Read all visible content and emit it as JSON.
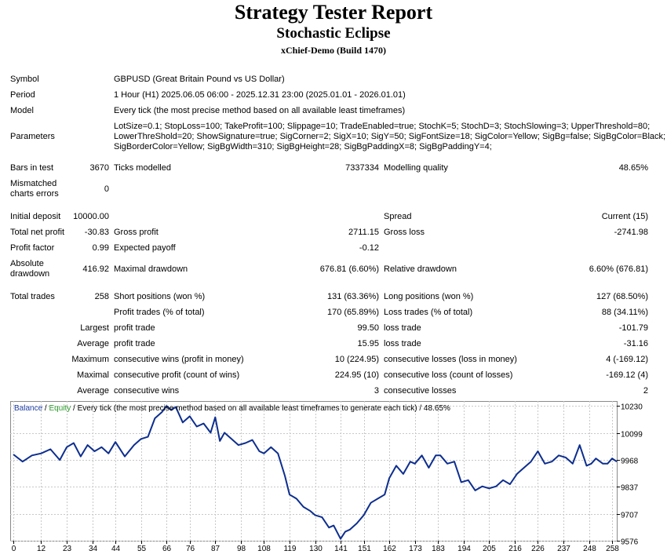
{
  "header": {
    "title": "Strategy Tester Report",
    "subtitle": "Stochastic Eclipse",
    "build": "xChief-Demo (Build 1470)"
  },
  "info": {
    "symbol_label": "Symbol",
    "symbol_value": "GBPUSD (Great Britain Pound vs US Dollar)",
    "period_label": "Period",
    "period_value": "1 Hour (H1) 2025.06.05 06:00 - 2025.12.31 23:00 (2025.01.01 - 2026.01.01)",
    "model_label": "Model",
    "model_value": "Every tick (the most precise method based on all available least timeframes)",
    "parameters_label": "Parameters",
    "parameters_lines": [
      "LotSize=0.1; StopLoss=100; TakeProfit=100; Slippage=10; TradeEnabled=true; StochK=5; StochD=3; StochSlowing=3; UpperThreshold=80;",
      "LowerThreShold=20; ShowSignature=true; SigCorner=2; SigX=10; SigY=50; SigFontSize=18; SigColor=Yellow; SigBg=false; SigBgColor=Black;",
      "SigBorderColor=Yellow; SigBgWidth=310; SigBgHeight=28; SigBgPaddingX=8; SigBgPaddingY=4;"
    ]
  },
  "stats": {
    "bars_label": "Bars in test",
    "bars_value": "3670",
    "ticks_label": "Ticks modelled",
    "ticks_value": "7337334",
    "quality_label": "Modelling quality",
    "quality_value": "48.65%",
    "mismatched_label_1": "Mismatched",
    "mismatched_label_2": "charts errors",
    "mismatched_value": "0",
    "deposit_label": "Initial deposit",
    "deposit_value": "10000.00",
    "spread_label": "Spread",
    "spread_value": "Current (15)",
    "net_label": "Total net profit",
    "net_value": "-30.83",
    "gross_profit_label": "Gross profit",
    "gross_profit_value": "2711.15",
    "gross_loss_label": "Gross loss",
    "gross_loss_value": "-2741.98",
    "pf_label": "Profit factor",
    "pf_value": "0.99",
    "ep_label": "Expected payoff",
    "ep_value": "-0.12",
    "abs_dd_label_1": "Absolute",
    "abs_dd_label_2": "drawdown",
    "abs_dd_value": "416.92",
    "max_dd_label": "Maximal drawdown",
    "max_dd_value": "676.81 (6.60%)",
    "rel_dd_label": "Relative drawdown",
    "rel_dd_value": "6.60% (676.81)",
    "trades_label": "Total trades",
    "trades_value": "258",
    "short_label": "Short positions (won %)",
    "short_value": "131 (63.36%)",
    "long_label": "Long positions (won %)",
    "long_value": "127 (68.50%)",
    "pt_label": "Profit trades (% of total)",
    "pt_value": "170 (65.89%)",
    "lt_label": "Loss trades (% of total)",
    "lt_value": "88 (34.11%)",
    "largest_label": "Largest",
    "largest_pt_label": "profit trade",
    "largest_pt_value": "99.50",
    "largest_lt_label": "loss trade",
    "largest_lt_value": "-101.79",
    "average_label": "Average",
    "average_pt_label": "profit trade",
    "average_pt_value": "15.95",
    "average_lt_label": "loss trade",
    "average_lt_value": "-31.16",
    "maximum_label": "Maximum",
    "max_cw_label": "consecutive wins (profit in money)",
    "max_cw_value": "10 (224.95)",
    "max_cl_label": "consecutive losses (loss in money)",
    "max_cl_value": "4 (-169.12)",
    "maximal_label": "Maximal",
    "maximal_cp_label": "consecutive profit (count of wins)",
    "maximal_cp_value": "224.95 (10)",
    "maximal_cl_label": "consecutive loss (count of losses)",
    "maximal_cl_value": "-169.12 (4)",
    "average2_label": "Average",
    "avg_cw_label": "consecutive wins",
    "avg_cw_value": "3",
    "avg_cl_label": "consecutive losses",
    "avg_cl_value": "2"
  },
  "chart_legend": {
    "balance": "Balance",
    "sep": " / ",
    "equity": "Equity",
    "rest": " / Every tick (the most precise method based on all available least timeframes to generate each tick) / 48.65%"
  },
  "colors": {
    "balance_line": "#0d2e8f",
    "balance_text": "#1f3fa8",
    "equity_text": "#2a9a2a",
    "grid": "#c8c8c8"
  },
  "chart_data": {
    "type": "line",
    "title": "",
    "xlabel": "",
    "ylabel": "",
    "x_ticks": [
      0,
      12,
      23,
      34,
      44,
      55,
      66,
      76,
      87,
      98,
      108,
      119,
      130,
      141,
      151,
      162,
      173,
      183,
      194,
      205,
      216,
      226,
      237,
      248,
      258
    ],
    "y_ticks": [
      9576,
      9707,
      9837,
      9968,
      10099,
      10230
    ],
    "xlim": [
      0,
      260
    ],
    "ylim": [
      9576,
      10250
    ],
    "grid": true,
    "legend_position": "top-left",
    "series": [
      {
        "name": "Balance",
        "x": [
          0,
          4,
          8,
          12,
          16,
          20,
          23,
          26,
          29,
          32,
          35,
          38,
          41,
          44,
          48,
          52,
          55,
          58,
          61,
          64,
          66,
          68,
          70,
          73,
          76,
          79,
          82,
          85,
          87,
          89,
          91,
          94,
          97,
          100,
          103,
          106,
          108,
          111,
          114,
          117,
          119,
          122,
          125,
          128,
          130,
          133,
          136,
          138,
          141,
          143,
          145,
          148,
          151,
          154,
          157,
          160,
          162,
          165,
          168,
          171,
          173,
          176,
          179,
          182,
          184,
          187,
          190,
          193,
          196,
          199,
          202,
          205,
          208,
          211,
          214,
          217,
          220,
          223,
          226,
          229,
          232,
          235,
          238,
          241,
          244,
          247,
          249,
          251,
          254,
          256,
          258,
          260
        ],
        "values": [
          9995,
          9960,
          9990,
          10000,
          10020,
          9968,
          10030,
          10050,
          9985,
          10040,
          10010,
          10030,
          10000,
          10055,
          9985,
          10040,
          10070,
          10080,
          10170,
          10200,
          10230,
          10210,
          10225,
          10150,
          10180,
          10130,
          10145,
          10100,
          10175,
          10060,
          10100,
          10070,
          10040,
          10050,
          10065,
          10010,
          10000,
          10030,
          10000,
          9890,
          9800,
          9780,
          9740,
          9720,
          9700,
          9690,
          9640,
          9650,
          9585,
          9620,
          9630,
          9660,
          9700,
          9760,
          9780,
          9800,
          9880,
          9940,
          9900,
          9960,
          9950,
          9990,
          9930,
          9990,
          9990,
          9950,
          9960,
          9860,
          9870,
          9820,
          9840,
          9830,
          9840,
          9870,
          9850,
          9900,
          9930,
          9960,
          10010,
          9950,
          9960,
          9990,
          9980,
          9950,
          10040,
          9940,
          9950,
          9975,
          9950,
          9950,
          9975,
          9960
        ]
      }
    ]
  }
}
